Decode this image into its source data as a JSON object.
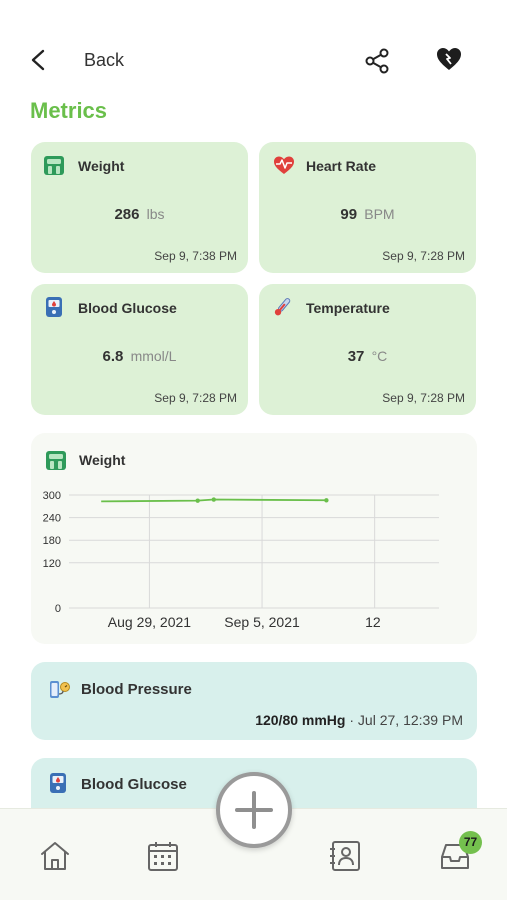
{
  "header": {
    "back_label": "Back",
    "share_icon": "share-icon",
    "favorite_icon": "heart-pulse-icon"
  },
  "section_title": "Metrics",
  "metrics": [
    {
      "title": "Weight",
      "value": "286",
      "unit": "lbs",
      "time": "Sep 9, 7:38 PM",
      "icon": "scale-icon"
    },
    {
      "title": "Heart Rate",
      "value": "99",
      "unit": "BPM",
      "time": "Sep 9, 7:28 PM",
      "icon": "heart-rate-icon"
    },
    {
      "title": "Blood Glucose",
      "value": "6.8",
      "unit": "mmol/L",
      "time": "Sep 9, 7:28 PM",
      "icon": "glucose-meter-icon"
    },
    {
      "title": "Temperature",
      "value": "37",
      "unit": "°C",
      "time": "Sep 9, 7:28 PM",
      "icon": "thermometer-icon"
    }
  ],
  "weight_chart": {
    "title": "Weight",
    "icon": "scale-icon"
  },
  "chart_data": {
    "type": "line",
    "title": "Weight",
    "xlabel": "",
    "ylabel": "",
    "x_tick_labels": [
      "Aug 29, 2021",
      "Sep 5, 2021",
      "12"
    ],
    "y_tick_labels": [
      "0",
      "120",
      "180",
      "240",
      "300"
    ],
    "ylim": [
      0,
      300
    ],
    "grid": true,
    "series": [
      {
        "x": [
          "2021-08-26",
          "2021-09-01",
          "2021-09-02",
          "2021-09-09"
        ],
        "y": [
          283,
          285,
          288,
          286
        ]
      }
    ]
  },
  "blood_pressure": {
    "title": "Blood Pressure",
    "value": "120/80 mmHg",
    "time": " · Jul 27, 12:39 PM",
    "icon": "blood-pressure-icon"
  },
  "blood_glucose_card": {
    "title": "Blood Glucose",
    "icon": "glucose-meter-icon"
  },
  "nav": {
    "badge_count": "77",
    "colors": {
      "accent": "#6abf4b",
      "badge": "#74c04e"
    }
  }
}
